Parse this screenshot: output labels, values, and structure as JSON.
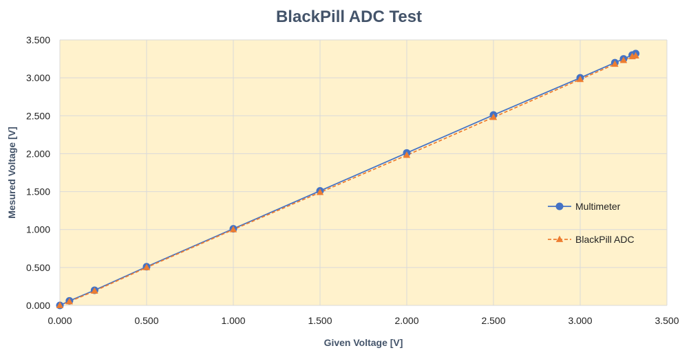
{
  "chart_data": {
    "type": "line",
    "title": "BlackPill ADC Test",
    "xlabel": "Given Voltage [V]",
    "ylabel": "Mesured Voltage [V]",
    "xlim": [
      0,
      3.5
    ],
    "ylim": [
      0,
      3.5
    ],
    "x_ticks": [
      "0.000",
      "0.500",
      "1.000",
      "1.500",
      "2.000",
      "2.500",
      "3.000",
      "3.500"
    ],
    "y_ticks": [
      "0.000",
      "0.500",
      "1.000",
      "1.500",
      "2.000",
      "2.500",
      "3.000",
      "3.500"
    ],
    "grid": true,
    "legend_position": "right",
    "plot_background": "#fff2cc",
    "series": [
      {
        "name": "Multimeter",
        "color": "#4472c4",
        "marker": "circle",
        "line": "solid",
        "x": [
          0.0,
          0.055,
          0.2,
          0.5,
          1.0,
          1.5,
          2.0,
          2.5,
          3.0,
          3.2,
          3.25,
          3.3,
          3.32
        ],
        "y": [
          0.0,
          0.06,
          0.2,
          0.51,
          1.01,
          1.51,
          2.01,
          2.51,
          3.0,
          3.2,
          3.25,
          3.3,
          3.32
        ]
      },
      {
        "name": "BlackPill ADC",
        "color": "#ed7d31",
        "marker": "triangle",
        "line": "dashed",
        "x": [
          0.0,
          0.055,
          0.2,
          0.5,
          1.0,
          1.5,
          2.0,
          2.5,
          3.0,
          3.2,
          3.25,
          3.3,
          3.32
        ],
        "y": [
          0.0,
          0.05,
          0.19,
          0.5,
          1.0,
          1.49,
          1.98,
          2.48,
          2.98,
          3.18,
          3.23,
          3.28,
          3.29
        ]
      }
    ]
  }
}
